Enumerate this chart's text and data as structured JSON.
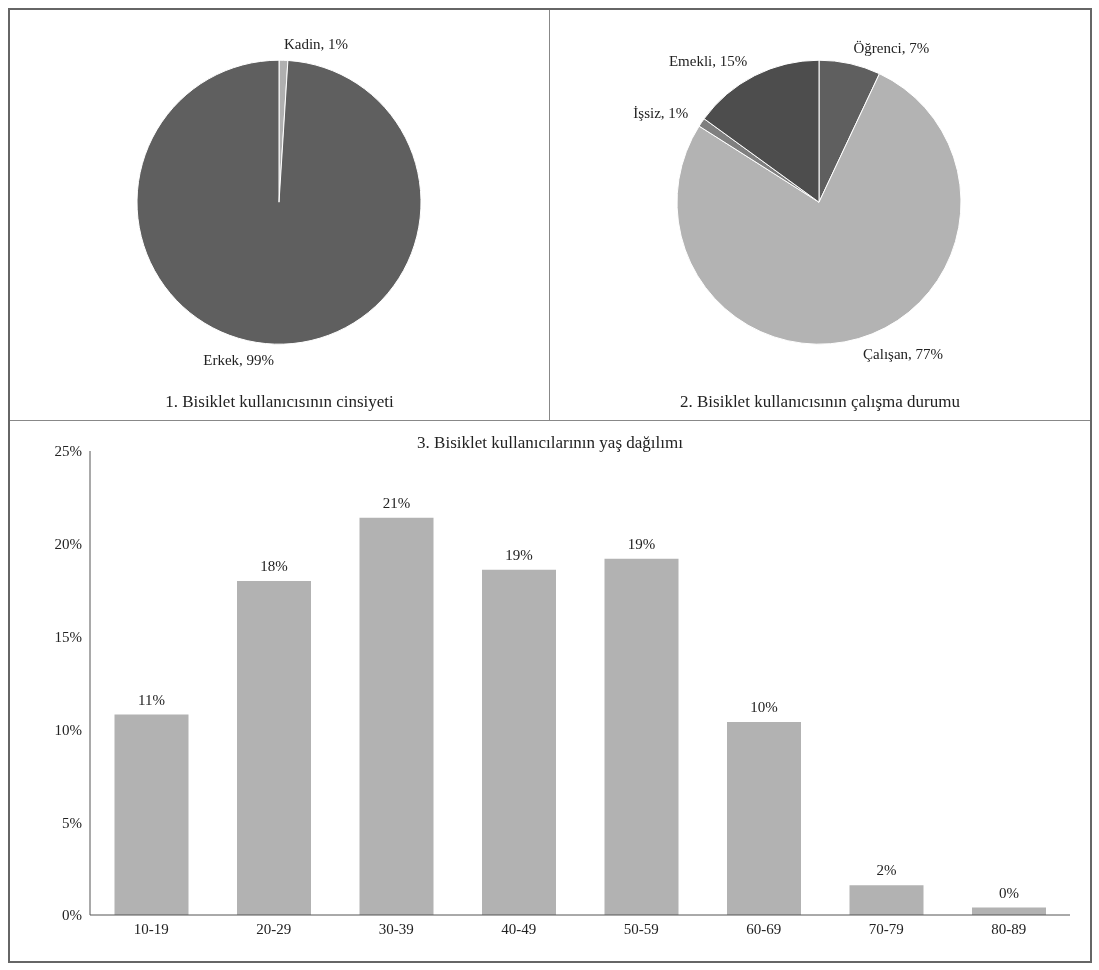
{
  "chart_data": [
    {
      "type": "pie",
      "title": "1. Bisiklet kullanıcısının cinsiyeti",
      "categories": [
        "Kadin",
        "Erkek"
      ],
      "values": [
        1,
        99
      ],
      "value_labels": [
        "1%",
        "99%"
      ],
      "colors": [
        "#b0b0b0",
        "#5f5f5f"
      ]
    },
    {
      "type": "pie",
      "title": "2. Bisiklet kullanıcısının çalışma durumu",
      "categories": [
        "Öğrenci",
        "Çalışan",
        "İşsiz",
        "Emekli"
      ],
      "values": [
        7,
        77,
        1,
        15
      ],
      "value_labels": [
        "7%",
        "77%",
        "1%",
        "15%"
      ],
      "colors": [
        "#5f5f5f",
        "#b3b3b3",
        "#7f7f7f",
        "#4d4d4d"
      ]
    },
    {
      "type": "bar",
      "title": "3. Bisiklet kullanıcılarının yaş dağılımı",
      "categories": [
        "10-19",
        "20-29",
        "30-39",
        "40-49",
        "50-59",
        "60-69",
        "70-79",
        "80-89"
      ],
      "values": [
        10.8,
        18,
        21.4,
        18.6,
        19.2,
        10.4,
        1.6,
        0.4
      ],
      "value_labels": [
        "11%",
        "18%",
        "21%",
        "19%",
        "19%",
        "10%",
        "2%",
        "0%"
      ],
      "color": "#b2b2b2",
      "ylim": [
        0,
        25
      ],
      "yticks": [
        {
          "value": 0,
          "label": "0%"
        },
        {
          "value": 5,
          "label": "5%"
        },
        {
          "value": 10,
          "label": "10%"
        },
        {
          "value": 15,
          "label": "15%"
        },
        {
          "value": 20,
          "label": "20%"
        },
        {
          "value": 25,
          "label": "25%"
        }
      ]
    }
  ]
}
